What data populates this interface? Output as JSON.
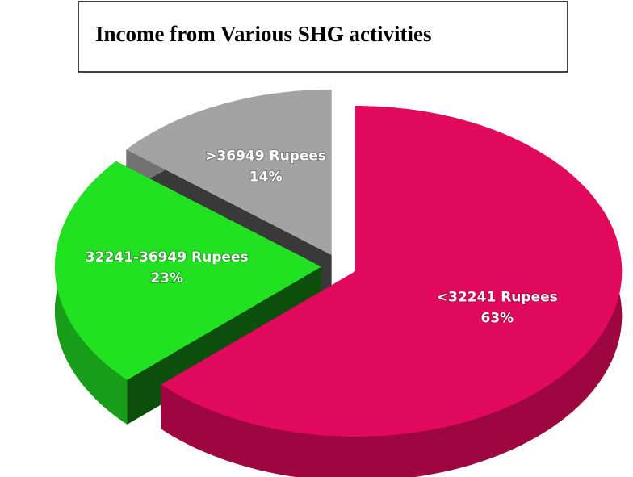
{
  "chart_data": {
    "type": "pie3d",
    "title": "Income from Various SHG activities",
    "categories": [
      "<32241 Rupees",
      "32241-36949 Rupees",
      ">36949 Rupees"
    ],
    "values": [
      63,
      23,
      14
    ],
    "value_labels": [
      "63%",
      "23%",
      "14%"
    ],
    "colors": [
      "#e2085c",
      "#22e022",
      "#a3a3a3"
    ]
  }
}
